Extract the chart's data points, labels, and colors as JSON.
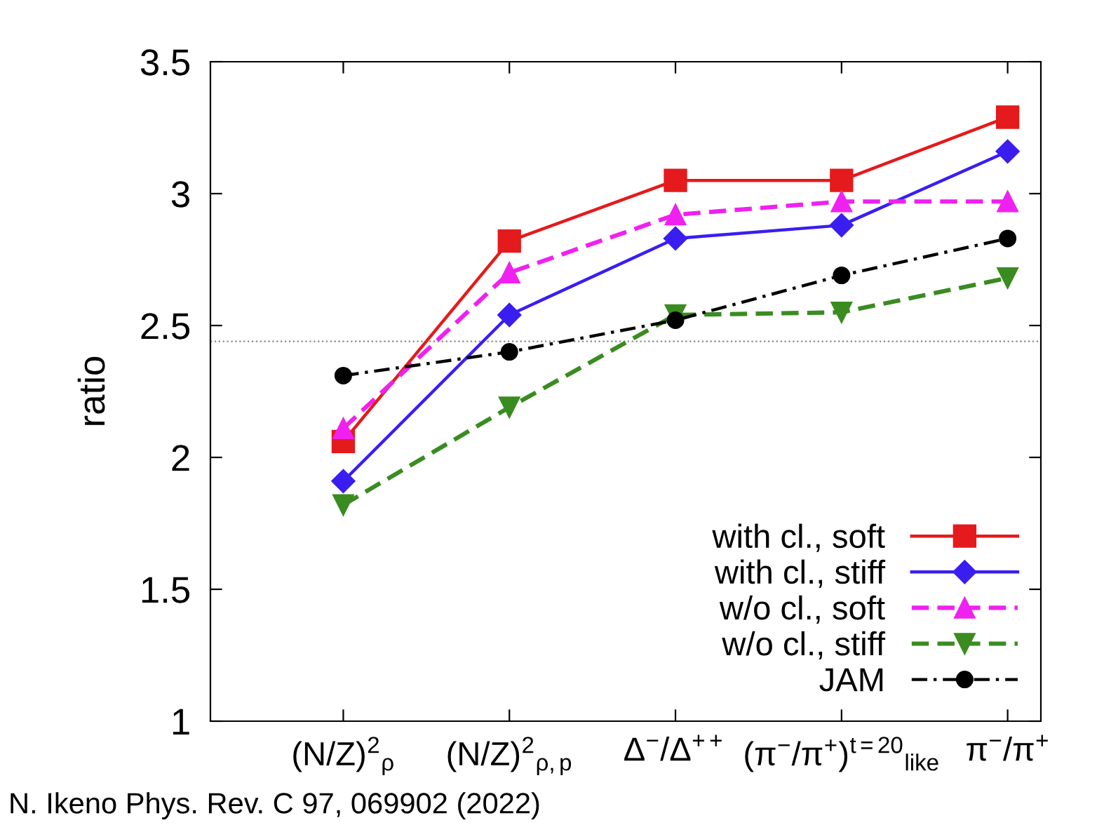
{
  "chart_data": {
    "type": "line",
    "ylabel": "ratio",
    "categories": [
      "(N/Z)$^{2}$$_{ρ}$",
      "(N/Z)$^{2}$$_{ρ,p}$",
      "Δ$^{−}$/Δ$^{++}$",
      "(π$^{−}$/π$^{+}$)$^{t=20}$$_{like}$",
      "π$^{−}$/π$^{+}$"
    ],
    "series": [
      {
        "name": "with cl., soft",
        "color": "#e41a1c",
        "marker": "square",
        "line_style": "solid",
        "values": [
          2.06,
          2.82,
          3.05,
          3.05,
          3.29
        ]
      },
      {
        "name": "with cl., stiff",
        "color": "#3a1ef0",
        "marker": "diamond",
        "line_style": "solid",
        "values": [
          1.91,
          2.54,
          2.83,
          2.88,
          3.16
        ]
      },
      {
        "name": "w/o cl., soft",
        "color": "#f020f0",
        "marker": "triangle",
        "line_style": "dashed",
        "values": [
          2.11,
          2.7,
          2.92,
          2.97,
          2.97
        ]
      },
      {
        "name": "w/o cl., stiff",
        "color": "#3a8c20",
        "marker": "triangle_down",
        "line_style": "dashed",
        "values": [
          1.82,
          2.19,
          2.54,
          2.55,
          2.68
        ]
      },
      {
        "name": "JAM",
        "color": "#000000",
        "marker": "circle",
        "line_style": "dashdot",
        "values": [
          2.31,
          2.4,
          2.52,
          2.69,
          2.83
        ]
      }
    ],
    "ylim": [
      1,
      3.5
    ],
    "yticks": [
      1,
      1.5,
      2,
      2.5,
      3,
      3.5
    ],
    "ref_lines": [
      {
        "axis": "y",
        "value": 2.44,
        "color": "#888888",
        "line_style": "dotted"
      }
    ],
    "grid": false,
    "legend": "bottom right",
    "annotations": [
      "N. Ikeno Phys. Rev. C 97, 069902 (2022)"
    ]
  }
}
